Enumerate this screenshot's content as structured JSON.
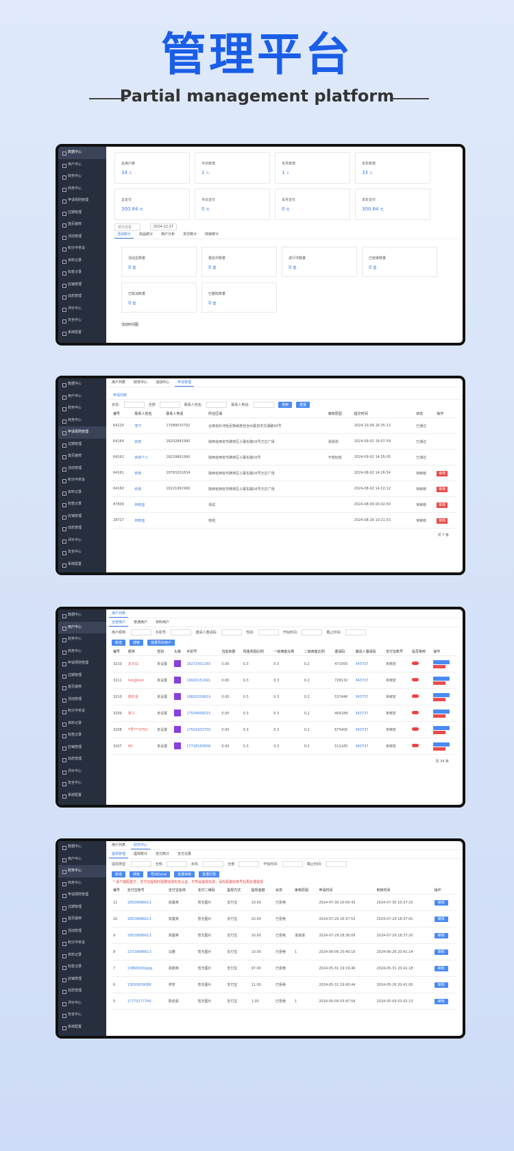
{
  "header": {
    "title": "管理平台",
    "subtitle": "Partial management platform"
  },
  "sidebar": [
    "数据中心",
    "用户中心",
    "财务中心",
    "商务中心",
    "申请规则管理",
    "过期管理",
    "首页装修",
    "活动管理",
    "积分中奖设",
    "资料记录",
    "标签记录",
    "店铺管理",
    "动态管理",
    "评价中心",
    "安全中心",
    "系统配置"
  ],
  "dashboard": {
    "stats": [
      {
        "label": "总用户数",
        "value": "34",
        "unit": "人"
      },
      {
        "label": "今日新增",
        "value": "1",
        "unit": "人"
      },
      {
        "label": "本月新增",
        "value": "1",
        "unit": "人"
      },
      {
        "label": "本年新增",
        "value": "33",
        "unit": "人"
      },
      {
        "label": "总支付",
        "value": "300.84",
        "unit": "元"
      },
      {
        "label": "今日支付",
        "value": "0",
        "unit": "元"
      },
      {
        "label": "本月支付",
        "value": "0",
        "unit": "元"
      },
      {
        "label": "本年支付",
        "value": "300.84",
        "unit": "元"
      }
    ],
    "select": "按天查看",
    "date": "2024-12-27",
    "tabs": [
      "活动统计",
      "商品统计",
      "用户分析",
      "支付统计",
      "商家统计"
    ],
    "cards": [
      {
        "label": "活动总数量",
        "value": "0",
        "unit": "套"
      },
      {
        "label": "报名中数量",
        "value": "0",
        "unit": "套"
      },
      {
        "label": "进行中数量",
        "value": "0",
        "unit": "套"
      },
      {
        "label": "已结束数量",
        "value": "0",
        "unit": "套"
      },
      {
        "label": "已取消数量",
        "value": "0",
        "unit": "套"
      },
      {
        "label": "已删除数量",
        "value": "0",
        "unit": "套"
      }
    ],
    "chart_title": "活动时间图"
  },
  "applications": {
    "tabs": [
      "用户列表",
      "财务中心",
      "活动中心",
      "申请管理"
    ],
    "subtab": "申请列表",
    "filters": [
      "状态:",
      "全部",
      "联系人姓名:",
      "联系人电话:"
    ],
    "buttons": [
      "搜索",
      "重置"
    ],
    "columns": [
      "编号",
      "联系人姓名",
      "联系人电话",
      "所在区域",
      "审核原因",
      "提交时间",
      "状态",
      "操作"
    ],
    "rows": [
      [
        "64220",
        "李宁",
        "17589033792",
        "云南省红河哈尼族彝族自治州蒙自市文澜路43号",
        "",
        "2024-10-09 16:35:13",
        "已通过",
        ""
      ],
      [
        "64164",
        "依依",
        "18202841990",
        "陕西省西安市碑林区小寨东路16号万达广场",
        "测测测",
        "2024-09-02 16:07:59",
        "已通过",
        ""
      ],
      [
        "64162",
        "依依个人",
        "18229861990",
        "陕西省西安市碑林区小寨东路16号",
        "不想玩啦",
        "2024-09-02 14:35:05",
        "已通过",
        ""
      ],
      [
        "64161",
        "依依",
        "18783201634",
        "陕西省西安市碑林区小寨东路16号万达广场",
        "",
        "2024-08-02 14:26:54",
        "待审核",
        "审核"
      ],
      [
        "64160",
        "依依",
        "18221961990",
        "陕西省西安市碑林区小寨东路16号万达广场",
        "",
        "2024-08-02 14:22:12",
        "待审核",
        "审核"
      ],
      [
        "87809",
        "林晓亚",
        "",
        "测试",
        "",
        "2024-08-09 00:02:50",
        "待审核",
        "审核"
      ],
      [
        "28727",
        "林晓亚",
        "",
        "啦啦",
        "",
        "2024-08-28 10:21:53",
        "待审核",
        "审核"
      ]
    ],
    "pager": "共 7 条"
  },
  "users": {
    "tabs": [
      "用户列表"
    ],
    "subtabs": [
      "全部用户",
      "普通用户",
      "资料用户"
    ],
    "filters": [
      "用户昵称:",
      "手机号:",
      "邀请人邀请码:",
      "性别:",
      "开始时间:",
      "截止时间:"
    ],
    "buttons": [
      "新增",
      "搜索",
      "批量导出用户"
    ],
    "columns": [
      "编号",
      "昵称",
      "性别",
      "头像",
      "手机号",
      "当前余额",
      "现金奖励比例",
      "一级佣金比例",
      "二级佣金比例",
      "邀请码",
      "邀请人邀请码",
      "支付宝账号",
      "是否禁用",
      "操作"
    ],
    "rows": [
      [
        "3210",
        "夫子曰",
        "未设置",
        "",
        "18272501183",
        "0.00",
        "0.3",
        "0.3",
        "0.2",
        "471500",
        "343737",
        "未绑定",
        "",
        ""
      ],
      [
        "3211",
        "hot@test",
        "未设置",
        "",
        "19920151991",
        "0.00",
        "0.3",
        "0.3",
        "0.2",
        "728132",
        "343737",
        "未绑定",
        "",
        ""
      ],
      [
        "3210",
        "高杉也",
        "未设置",
        "",
        "18820256619",
        "0.00",
        "0.3",
        "0.3",
        "0.2",
        "537446",
        "343737",
        "未绑定",
        "",
        ""
      ],
      [
        "3209",
        "张三",
        "未设置",
        "",
        "17504606015",
        "0.00",
        "0.3",
        "0.3",
        "0.2",
        "404189",
        "343737",
        "未绑定",
        "",
        ""
      ],
      [
        "3208",
        "T号***3750",
        "未设置",
        "",
        "17501933750",
        "0.00",
        "0.3",
        "0.3",
        "0.2",
        "675400",
        "343737",
        "未绑定",
        "",
        ""
      ],
      [
        "3207",
        "00",
        "未设置",
        "",
        "17728160658",
        "0.00",
        "0.3",
        "0.3",
        "0.2",
        "511165",
        "343737",
        "未绑定",
        "",
        ""
      ]
    ],
    "pager": "共 34 条"
  },
  "finance": {
    "tabs": [
      "用户列表",
      "财务中心"
    ],
    "subtabs": [
      "提现管理",
      "提现统计",
      "支付统计",
      "支付记录"
    ],
    "filters": [
      "提现类型:",
      "全部",
      "状态:",
      "全部",
      "开始时间:",
      "截止时间:"
    ],
    "buttons": [
      "新增",
      "搜索",
      "导出Excel",
      "批量审核",
      "批量打款"
    ],
    "notice": "* 请下载配置方，支付宝提现时需要完成实名认证，不然会提现失败，请先配置好账号后再处理提现",
    "columns": [
      "编号",
      "支付宝账号",
      "支付宝名称",
      "支付二维码",
      "提现方式",
      "提现金额",
      "状态",
      "审核原因",
      "申请时间",
      "到账时间",
      "操作"
    ],
    "rows": [
      [
        "11",
        "18529686613",
        "高露英",
        "暂无图片",
        "支付宝",
        "10.00",
        "已拒绝",
        "",
        "2024-07-30 10:00:43",
        "2024-07-30 10:37:15",
        "审核"
      ],
      [
        "10",
        "18529686613",
        "高露英",
        "暂无图片",
        "支付宝",
        "20.00",
        "已拒绝",
        "",
        "2024-07-29 18:37:53",
        "2024-07-29 18:37:41",
        "审核"
      ],
      [
        "9",
        "18529686613",
        "高露英",
        "暂无图片",
        "支付宝",
        "10.00",
        "已拒绝",
        "滚滚滚",
        "2024-07-29 18:36:09",
        "2024-07-29 18:37:20",
        "审核"
      ],
      [
        "8",
        "13729686613",
        "冯雅",
        "暂无图片",
        "支付宝",
        "10.00",
        "已拒绝",
        "1",
        "2024-06-06 20:40:16",
        "2024-06-26 20:41:14",
        "审核"
      ],
      [
        "7",
        "13866500@qq",
        "高丽英",
        "暂无图片",
        "支付宝",
        "97.00",
        "已拒绝",
        "",
        "2024-05-31 19:19:46",
        "2024-05-31 20:41:18",
        "审核"
      ],
      [
        "6",
        "13050839086",
        "罗软",
        "暂无图片",
        "支付宝",
        "11.00",
        "已拒绝",
        "",
        "2024-05-31 19:00:44",
        "2024-05-26 20:41:00",
        "审核"
      ],
      [
        "5",
        "17770177740",
        "陈佳豪",
        "暂无图片",
        "支付宝",
        "1.00",
        "已拒绝",
        "1",
        "2024-05-09 03:47:54",
        "2024-05-09 03:42:13",
        "审核"
      ]
    ]
  }
}
